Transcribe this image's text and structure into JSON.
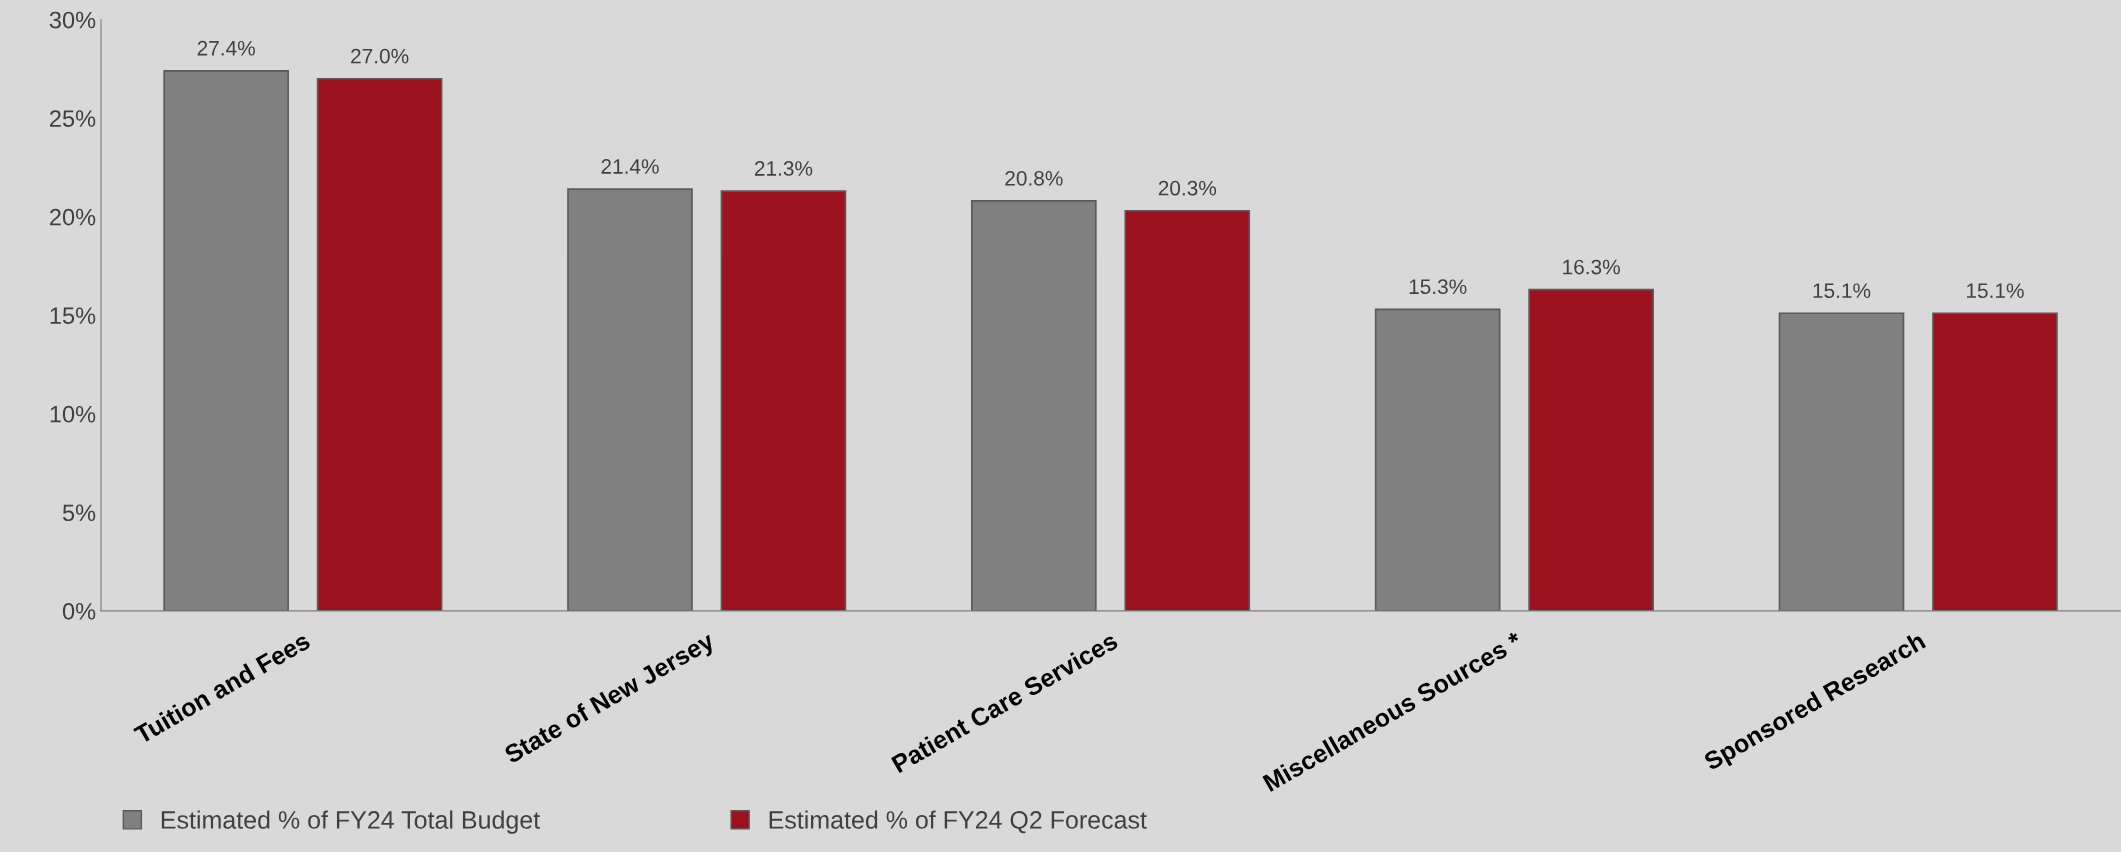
{
  "chart_data": {
    "type": "bar",
    "categories": [
      "Tuition and Fees",
      "State of New Jersey",
      "Patient Care Services",
      "Miscellaneous Sources *",
      "Sponsored Research"
    ],
    "series": [
      {
        "name": "Estimated % of FY24 Total Budget",
        "color": "#808080",
        "values": [
          27.4,
          21.4,
          20.8,
          15.3,
          15.1
        ],
        "value_labels": [
          "27.4%",
          "21.4%",
          "20.8%",
          "15.3%",
          "15.1%"
        ]
      },
      {
        "name": "Estimated % of FY24 Q2 Forecast",
        "color": "#9b111e",
        "values": [
          27.0,
          21.3,
          20.3,
          16.3,
          15.1
        ],
        "value_labels": [
          "27.0%",
          "21.3%",
          "20.3%",
          "16.3%",
          "15.1%"
        ]
      }
    ],
    "ylim": [
      0,
      30
    ],
    "yticks": [
      {
        "value": 0,
        "label": "0%"
      },
      {
        "value": 5,
        "label": "5%"
      },
      {
        "value": 10,
        "label": "10%"
      },
      {
        "value": 15,
        "label": "15%"
      },
      {
        "value": 20,
        "label": "20%"
      },
      {
        "value": 25,
        "label": "25%"
      },
      {
        "value": 30,
        "label": "30%"
      }
    ],
    "grid": false,
    "legend": "bottom left"
  }
}
